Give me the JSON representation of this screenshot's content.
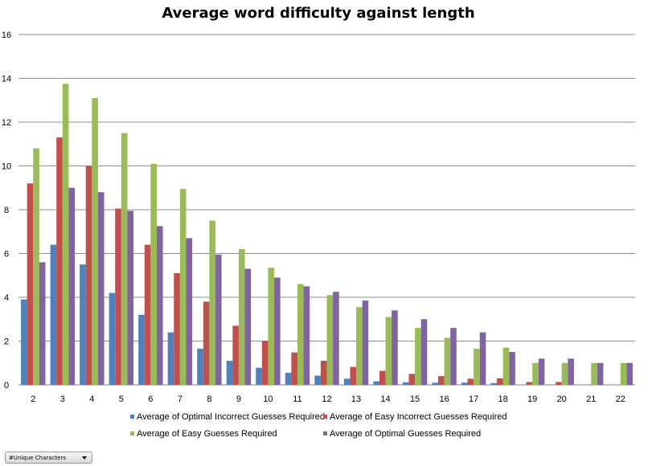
{
  "chart_data": {
    "type": "bar",
    "title": "Average word difficulty against length",
    "xlabel": "",
    "ylabel": "",
    "ylim": [
      0,
      16
    ],
    "yticks": [
      0,
      2,
      4,
      6,
      8,
      10,
      12,
      14,
      16
    ],
    "grid": true,
    "legend": "bottom",
    "categories": [
      "2",
      "3",
      "4",
      "5",
      "6",
      "7",
      "8",
      "9",
      "10",
      "11",
      "12",
      "13",
      "14",
      "15",
      "16",
      "17",
      "18",
      "19",
      "20",
      "21",
      "22"
    ],
    "series": [
      {
        "name": "Average of Optimal Incorrect Guesses Required",
        "color": "#4f81bd",
        "values": [
          3.9,
          6.4,
          5.5,
          4.2,
          3.2,
          2.4,
          1.65,
          1.1,
          0.78,
          0.55,
          0.42,
          0.28,
          0.16,
          0.12,
          0.1,
          0.1,
          0.08,
          0,
          0,
          0,
          0
        ]
      },
      {
        "name": "Average of Easy Incorrect Guesses Required",
        "color": "#c0504d",
        "values": [
          9.2,
          11.3,
          10.0,
          8.05,
          6.4,
          5.1,
          3.8,
          2.7,
          2.0,
          1.48,
          1.1,
          0.82,
          0.64,
          0.5,
          0.4,
          0.28,
          0.3,
          0.13,
          0.13,
          0,
          0
        ]
      },
      {
        "name": "Average of Easy Guesses Required",
        "color": "#9bbb59",
        "values": [
          10.8,
          13.75,
          13.1,
          11.5,
          10.1,
          8.95,
          7.5,
          6.2,
          5.35,
          4.6,
          4.1,
          3.55,
          3.1,
          2.6,
          2.15,
          1.65,
          1.7,
          1.0,
          1.0,
          1.0,
          1.0
        ]
      },
      {
        "name": "Average of Optimal Guesses Required",
        "color": "#8064a2",
        "values": [
          5.6,
          9.0,
          8.8,
          7.95,
          7.25,
          6.7,
          5.95,
          5.3,
          4.9,
          4.5,
          4.25,
          3.85,
          3.4,
          3.0,
          2.6,
          2.4,
          1.5,
          1.2,
          1.2,
          1.0,
          1.0
        ]
      }
    ]
  },
  "field_button": {
    "label": "#Unique Characters"
  }
}
